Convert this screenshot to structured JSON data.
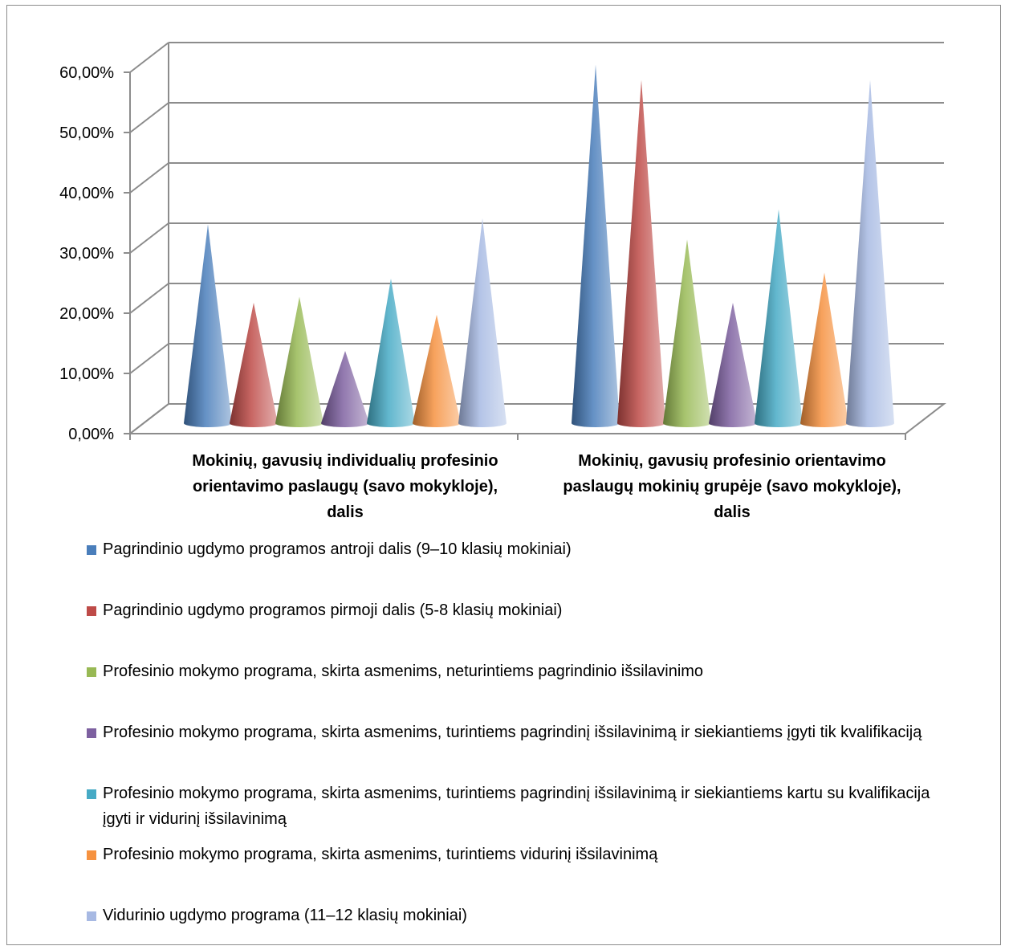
{
  "chart_data": {
    "type": "bar",
    "bar_shape": "cone-3d",
    "title": "",
    "xlabel": "",
    "ylabel": "",
    "ylim": [
      0,
      0.6
    ],
    "yticks": [
      "0,00%",
      "10,00%",
      "20,00%",
      "30,00%",
      "40,00%",
      "50,00%",
      "60,00%"
    ],
    "grid": true,
    "legend_position": "bottom",
    "categories": [
      "Mokinių, gavusių individualių profesinio orientavimo paslaugų (savo mokykloje), dalis",
      "Mokinių, gavusių profesinio orientavimo paslaugų mokinių grupėje (savo mokykloje), dalis"
    ],
    "series": [
      {
        "name": "Pagrindinio ugdymo programos antroji dalis (9–10 klasių mokiniai)",
        "color": "#4a7ebb",
        "values": [
          0.33,
          0.595
        ]
      },
      {
        "name": "Pagrindinio ugdymo programos pirmoji dalis (5-8 klasių mokiniai)",
        "color": "#be4b48",
        "values": [
          0.2,
          0.57
        ]
      },
      {
        "name": "Profesinio mokymo programa, skirta asmenims, neturintiems pagrindinio išsilavinimo",
        "color": "#98b954",
        "values": [
          0.21,
          0.305
        ]
      },
      {
        "name": "Profesinio mokymo programa, skirta asmenims, turintiems pagrindinį išsilavinimą ir siekiantiems įgyti tik kvalifikaciją",
        "color": "#7d60a0",
        "values": [
          0.12,
          0.2
        ]
      },
      {
        "name": "Profesinio mokymo programa, skirta asmenims, turintiems pagrindinį išsilavinimą ir siekiantiems kartu su kvalifikacija įgyti ir vidurinį išsilavinimą",
        "color": "#46aac5",
        "values": [
          0.24,
          0.355
        ]
      },
      {
        "name": "Profesinio mokymo programa, skirta asmenims, turintiems vidurinį išsilavinimą",
        "color": "#f69240",
        "values": [
          0.18,
          0.25
        ]
      },
      {
        "name": "Vidurinio ugdymo programa (11–12 klasių mokiniai)",
        "color": "#a7b9e3",
        "values": [
          0.34,
          0.57
        ]
      }
    ]
  }
}
